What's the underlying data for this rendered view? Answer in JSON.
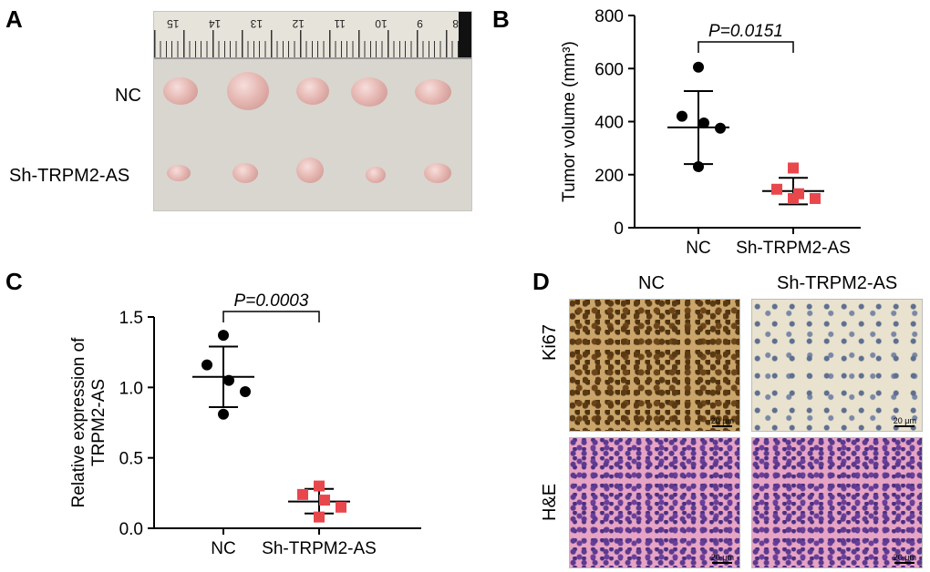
{
  "panels": {
    "a": "A",
    "b": "B",
    "c": "C",
    "d": "D"
  },
  "panel_a": {
    "row_labels": [
      "NC",
      "Sh-TRPM2-AS"
    ],
    "ruler_numbers": [
      "15",
      "14",
      "13",
      "12",
      "11",
      "10",
      "9",
      "8"
    ]
  },
  "panel_d": {
    "col_labels": [
      "NC",
      "Sh-TRPM2-AS"
    ],
    "row_labels": [
      "Ki67",
      "H&E"
    ],
    "scale_bar": "20 μm"
  },
  "chart_data": [
    {
      "id": "B",
      "type": "scatter",
      "categories": [
        "NC",
        "Sh-TRPM2-AS"
      ],
      "ylabel": "Tumor volume (mm³)",
      "ylim": [
        0,
        800
      ],
      "yticks": [
        0,
        200,
        400,
        600,
        800
      ],
      "significance": "P=0.0151",
      "series": [
        {
          "category": "NC",
          "marker": "circle",
          "color": "#000000",
          "points": [
            605,
            420,
            395,
            375,
            230
          ],
          "mean": 378,
          "error_low": 240,
          "error_high": 515
        },
        {
          "category": "Sh-TRPM2-AS",
          "marker": "square",
          "color": "#e8474c",
          "points": [
            225,
            145,
            128,
            110,
            110
          ],
          "mean": 138,
          "error_low": 88,
          "error_high": 188
        }
      ]
    },
    {
      "id": "C",
      "type": "scatter",
      "categories": [
        "NC",
        "Sh-TRPM2-AS"
      ],
      "ylabel": [
        "Relative expression of",
        "TRPM2-AS"
      ],
      "ylim": [
        0,
        1.5
      ],
      "yticks": [
        0.0,
        0.5,
        1.0,
        1.5
      ],
      "ytick_labels": [
        "0.0",
        "0.5",
        "1.0",
        "1.5"
      ],
      "significance": "P=0.0003",
      "series": [
        {
          "category": "NC",
          "marker": "circle",
          "color": "#000000",
          "points": [
            1.37,
            1.16,
            1.05,
            0.97,
            0.81
          ],
          "mean": 1.075,
          "error_low": 0.86,
          "error_high": 1.29
        },
        {
          "category": "Sh-TRPM2-AS",
          "marker": "square",
          "color": "#e8474c",
          "points": [
            0.3,
            0.24,
            0.2,
            0.15,
            0.08
          ],
          "mean": 0.19,
          "error_low": 0.105,
          "error_high": 0.28
        }
      ]
    }
  ]
}
